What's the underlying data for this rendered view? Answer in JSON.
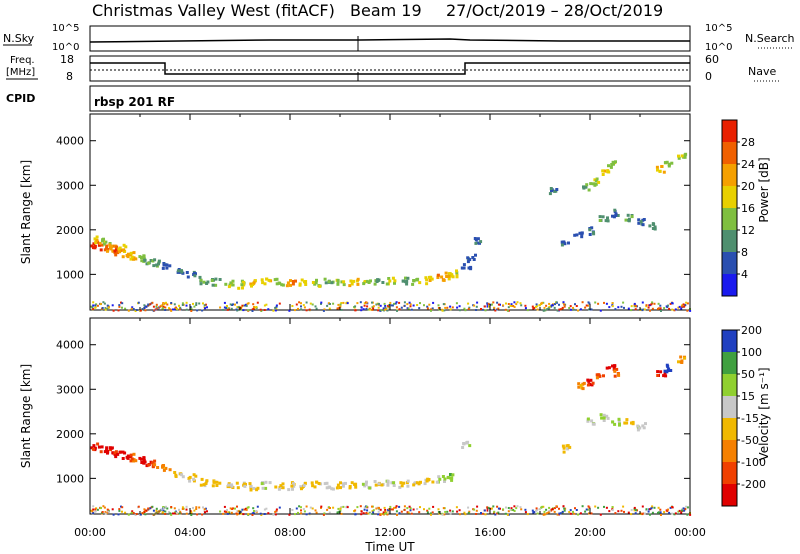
{
  "header": {
    "title": "Christmas Valley West (fitACF)",
    "beam": "Beam 19",
    "date_range": "27/Oct/2019 – 28/Oct/2019"
  },
  "top_panel": {
    "left_label": "N.Sky",
    "right_label": "N.Search",
    "left_ticks": [
      "10^5",
      "10^0"
    ],
    "right_ticks": [
      "10^5",
      "10^0"
    ]
  },
  "freq_panel": {
    "left_label_1": "Freq.",
    "left_label_2": "[MHz]",
    "right_label": "Nave",
    "left_ticks": [
      "18",
      "8"
    ],
    "right_ticks": [
      "60",
      "0"
    ]
  },
  "cpid": {
    "label": "CPID",
    "program": "rbsp 201 RF"
  },
  "colors": {
    "power_scale": [
      "#1a1aee",
      "#2a4fb0",
      "#4f8f6f",
      "#7fbf40",
      "#e8d000",
      "#f5a000",
      "#f06000",
      "#e82000"
    ],
    "velocity_scale": [
      "#e00000",
      "#f04000",
      "#f58000",
      "#f0b800",
      "#c8c8c8",
      "#90d030",
      "#40a040",
      "#2040c0"
    ]
  },
  "chart_data": [
    {
      "type": "heatmap",
      "name": "power",
      "ylabel": "Slant Range [km]",
      "yticks": [
        1000,
        2000,
        3000,
        4000
      ],
      "ylim": [
        200,
        4600
      ],
      "xlim": [
        0,
        24
      ],
      "colorbar_label": "Power [dB]",
      "colorbar_ticks": [
        "4",
        "8",
        "12",
        "16",
        "20",
        "24",
        "28"
      ],
      "cells": [
        [
          0.2,
          1700,
          7
        ],
        [
          0.5,
          1650,
          6
        ],
        [
          0.8,
          1600,
          5
        ],
        [
          1.1,
          1550,
          6
        ],
        [
          1.4,
          1500,
          5
        ],
        [
          1.7,
          1450,
          4
        ],
        [
          2.0,
          1400,
          3
        ],
        [
          2.3,
          1350,
          2
        ],
        [
          0.3,
          1800,
          4
        ],
        [
          0.6,
          1750,
          3
        ],
        [
          0.9,
          1680,
          5
        ],
        [
          1.2,
          1620,
          4
        ],
        [
          2.6,
          1300,
          2
        ],
        [
          3.0,
          1200,
          1
        ],
        [
          3.5,
          1100,
          1
        ],
        [
          4.0,
          1000,
          1
        ],
        [
          4.5,
          900,
          2
        ],
        [
          5.0,
          850,
          2
        ],
        [
          5.5,
          820,
          3
        ],
        [
          6.0,
          800,
          3
        ],
        [
          6.5,
          820,
          4
        ],
        [
          7.0,
          850,
          4
        ],
        [
          7.5,
          850,
          3
        ],
        [
          8.0,
          830,
          5
        ],
        [
          8.5,
          850,
          4
        ],
        [
          9.0,
          830,
          3
        ],
        [
          9.5,
          850,
          2
        ],
        [
          10.0,
          830,
          3
        ],
        [
          10.5,
          850,
          4
        ],
        [
          11.0,
          860,
          3
        ],
        [
          11.5,
          850,
          2
        ],
        [
          12.0,
          870,
          3
        ],
        [
          12.5,
          880,
          2
        ],
        [
          13.0,
          880,
          3
        ],
        [
          13.5,
          900,
          4
        ],
        [
          14.0,
          950,
          5
        ],
        [
          14.3,
          1000,
          4
        ],
        [
          14.5,
          1050,
          3
        ],
        [
          15.0,
          1200,
          1
        ],
        [
          15.2,
          1400,
          1
        ],
        [
          15.5,
          1800,
          1
        ],
        [
          19.0,
          1700,
          1
        ],
        [
          19.5,
          1900,
          1
        ],
        [
          20.0,
          2000,
          1
        ],
        [
          20.5,
          2300,
          2
        ],
        [
          21.0,
          2400,
          1
        ],
        [
          21.5,
          2300,
          2
        ],
        [
          22.0,
          2200,
          1
        ],
        [
          22.5,
          2100,
          2
        ],
        [
          20.2,
          3100,
          3
        ],
        [
          20.6,
          3300,
          4
        ],
        [
          20.8,
          3500,
          3
        ],
        [
          22.8,
          3400,
          4
        ],
        [
          23.1,
          3500,
          3
        ],
        [
          23.6,
          3700,
          3
        ],
        [
          18.5,
          2900,
          1
        ],
        [
          19.8,
          3000,
          2
        ]
      ],
      "ground_band": {
        "range": [
          200,
          400
        ],
        "xlim": [
          0,
          24
        ]
      }
    },
    {
      "type": "heatmap",
      "name": "velocity",
      "ylabel": "Slant Range [km]",
      "xlabel": "Time UT",
      "yticks": [
        1000,
        2000,
        3000,
        4000
      ],
      "ylim": [
        200,
        4600
      ],
      "xlim": [
        0,
        24
      ],
      "xticks": [
        "00:00",
        "04:00",
        "08:00",
        "12:00",
        "16:00",
        "20:00",
        "00:00"
      ],
      "colorbar_label": "Velocity [m s⁻¹]",
      "colorbar_ticks": [
        "-200",
        "-100",
        "-50",
        "-15",
        "15",
        "50",
        "100",
        "200"
      ],
      "cells": [
        [
          0.2,
          1750,
          0
        ],
        [
          0.5,
          1700,
          0
        ],
        [
          0.8,
          1650,
          0
        ],
        [
          1.1,
          1600,
          0
        ],
        [
          1.4,
          1550,
          0
        ],
        [
          1.7,
          1500,
          1
        ],
        [
          2.0,
          1450,
          0
        ],
        [
          2.3,
          1400,
          0
        ],
        [
          2.6,
          1350,
          1
        ],
        [
          3.0,
          1250,
          2
        ],
        [
          3.5,
          1150,
          3
        ],
        [
          4.0,
          1050,
          3
        ],
        [
          4.5,
          950,
          3
        ],
        [
          5.0,
          900,
          3
        ],
        [
          5.5,
          870,
          3
        ],
        [
          6.0,
          850,
          3
        ],
        [
          6.5,
          850,
          3
        ],
        [
          7.0,
          870,
          4
        ],
        [
          7.5,
          850,
          3
        ],
        [
          8.0,
          860,
          3
        ],
        [
          8.5,
          850,
          3
        ],
        [
          9.0,
          870,
          3
        ],
        [
          9.5,
          850,
          4
        ],
        [
          10.0,
          870,
          3
        ],
        [
          10.5,
          880,
          3
        ],
        [
          11.0,
          880,
          4
        ],
        [
          11.5,
          890,
          3
        ],
        [
          12.0,
          900,
          4
        ],
        [
          12.5,
          900,
          3
        ],
        [
          13.0,
          920,
          3
        ],
        [
          13.5,
          950,
          3
        ],
        [
          14.0,
          1000,
          4
        ],
        [
          14.3,
          1050,
          5
        ],
        [
          15.0,
          1800,
          4
        ],
        [
          19.0,
          1700,
          3
        ],
        [
          20.0,
          2300,
          4
        ],
        [
          20.5,
          2400,
          4
        ],
        [
          21.0,
          2300,
          4
        ],
        [
          21.5,
          2300,
          3
        ],
        [
          22.0,
          2200,
          4
        ],
        [
          20.0,
          3200,
          0
        ],
        [
          20.4,
          3300,
          1
        ],
        [
          20.8,
          3500,
          0
        ],
        [
          21.0,
          3400,
          1
        ],
        [
          22.8,
          3400,
          0
        ],
        [
          23.1,
          3500,
          7
        ],
        [
          23.6,
          3700,
          2
        ],
        [
          19.6,
          3100,
          2
        ]
      ],
      "ground_band": {
        "range": [
          200,
          400
        ],
        "xlim": [
          0,
          24
        ]
      }
    }
  ]
}
